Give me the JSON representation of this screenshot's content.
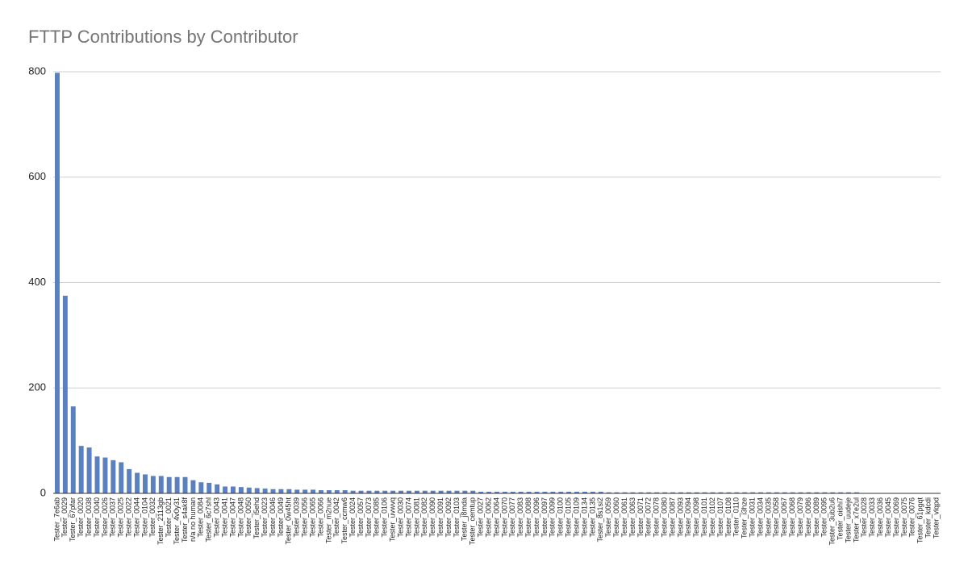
{
  "chart_data": {
    "type": "bar",
    "title": "FTTP Contributions by Contributor",
    "categories": [
      "Tester_7e6ab",
      "Tester_0029",
      "Tester_67pfar",
      "Tester_0020",
      "Tester_0038",
      "Tester_0040",
      "Tester_0026",
      "Tester_0037",
      "Tester_0025",
      "Tester_0022",
      "Tester_0044",
      "Tester_0104",
      "Tester_0032",
      "Tester_2113gb",
      "Tester_0021",
      "Tester_4v0y31",
      "Tester_s4ak8f",
      "n/a no human",
      "Tester_0084",
      "Tester_6c7shl",
      "Tester_0043",
      "Tester_0041",
      "Tester_0047",
      "Tester_0048",
      "Tester_0050",
      "Tester_i5ehd",
      "Tester_0023",
      "Tester_0046",
      "Tester_0049",
      "Tester_0w45ht",
      "Tester_0039",
      "Tester_0056",
      "Tester_0065",
      "Tester_0066",
      "Tester_m2nue",
      "Tester_0042",
      "Tester_ccmw6",
      "Tester_0024",
      "Tester_0057",
      "Tester_0073",
      "Tester_0085",
      "Tester_0106",
      "Tester_uvwvq",
      "Tester_0030",
      "Tester_0074",
      "Tester_0081",
      "Tester_0082",
      "Tester_0090",
      "Tester_0091",
      "Tester_0092",
      "Tester_0103",
      "Tester_j8mda",
      "Tester_cemtup",
      "Tester_0027",
      "Tester_0062",
      "Tester_0064",
      "Tester_0070",
      "Tester_0077",
      "Tester_0083",
      "Tester_0088",
      "Tester_0096",
      "Tester_0097",
      "Tester_0099",
      "Tester_0100",
      "Tester_0105",
      "Tester_0109",
      "Tester_0134",
      "Tester_0135",
      "Tester_8s1si2",
      "Tester_0059",
      "Tester_0060",
      "Tester_0061",
      "Tester_0063",
      "Tester_0071",
      "Tester_0072",
      "Tester_0078",
      "Tester_0080",
      "Tester_0087",
      "Tester_0093",
      "Tester_0094",
      "Tester_0098",
      "Tester_0101",
      "Tester_0102",
      "Tester_0107",
      "Tester_0108",
      "Tester_0110",
      "Tester_i3hze",
      "Tester_0031",
      "Tester_0034",
      "Tester_0035",
      "Tester_0058",
      "Tester_0067",
      "Tester_0068",
      "Tester_0079",
      "Tester_0086",
      "Tester_0089",
      "Tester_0095",
      "Tester_3ub2u6",
      "Tester_oishi7",
      "Tester_uudeje",
      "Tester_x7e2ul",
      "Tester_0028",
      "Tester_0033",
      "Tester_0036",
      "Tester_0045",
      "Tester_0069",
      "Tester_0075",
      "Tester_0076",
      "Tester_61pgqt",
      "Tester_kdcdi",
      "Tester_vlqpd"
    ],
    "values": [
      798,
      375,
      165,
      90,
      87,
      70,
      68,
      63,
      59,
      46,
      39,
      36,
      33,
      33,
      31,
      31,
      31,
      25,
      21,
      20,
      17,
      13,
      13,
      12,
      11,
      10,
      9,
      8,
      8,
      8,
      7,
      7,
      7,
      6,
      6,
      6,
      6,
      5,
      5,
      5,
      5,
      5,
      5,
      5,
      5,
      5,
      5,
      5,
      5,
      5,
      5,
      5,
      5,
      3,
      3,
      3,
      3,
      3,
      3,
      3,
      3,
      3,
      3,
      3,
      3,
      3,
      3,
      3,
      3,
      2,
      2,
      2,
      2,
      2,
      2,
      2,
      2,
      2,
      2,
      2,
      2,
      2,
      2,
      2,
      2,
      2,
      2,
      2,
      2,
      2,
      2,
      2,
      2,
      2,
      2,
      2,
      2,
      2,
      2,
      2,
      2,
      0,
      0,
      0,
      0,
      0,
      0,
      0,
      0,
      0,
      0
    ],
    "color": "#5b80c0",
    "ylim": [
      0,
      800
    ],
    "yticks": [
      0,
      200,
      400,
      600,
      800
    ],
    "grid": true
  }
}
